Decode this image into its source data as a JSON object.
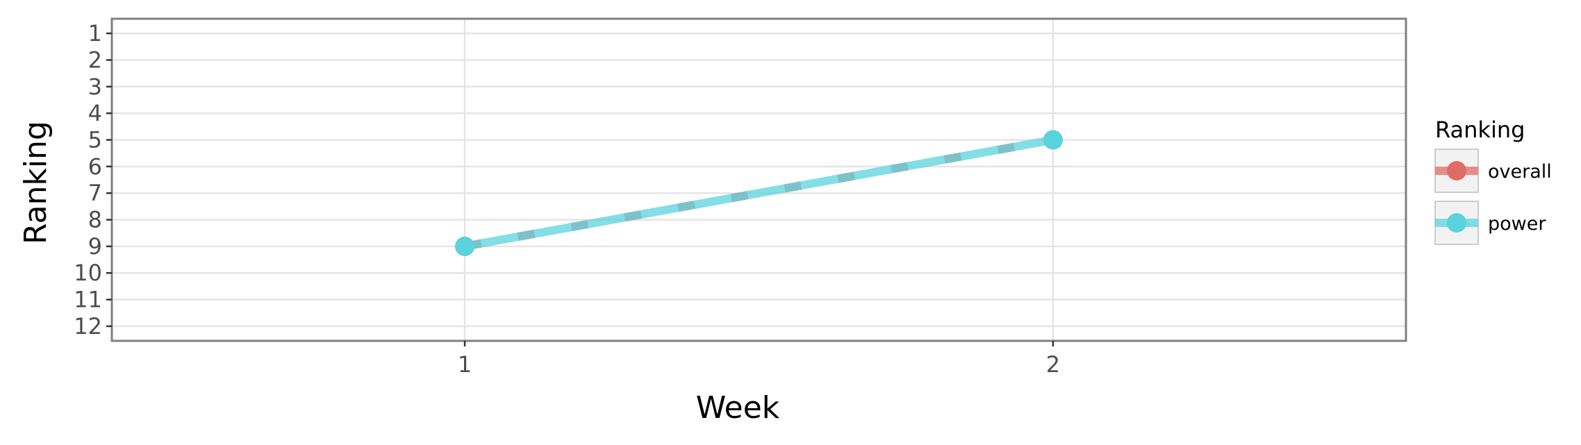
{
  "chart_data": {
    "type": "line",
    "title": "",
    "xlabel": "Week",
    "ylabel": "Ranking",
    "x": [
      1,
      2
    ],
    "x_tick_labels": [
      "1",
      "2"
    ],
    "xlim": [
      0.4,
      2.6
    ],
    "y_tick_labels": [
      "1",
      "2",
      "3",
      "4",
      "5",
      "6",
      "7",
      "8",
      "9",
      "10",
      "11",
      "12"
    ],
    "ylim": [
      0.45,
      12.55
    ],
    "y_reversed": true,
    "grid": true,
    "legend": {
      "title": "Ranking",
      "placement": "right",
      "entries": [
        "overall",
        "power"
      ]
    },
    "series": [
      {
        "name": "overall",
        "x": [
          1,
          2
        ],
        "y": [
          9,
          5
        ],
        "color": "#E06C65",
        "line_style": "dashed"
      },
      {
        "name": "power",
        "x": [
          1,
          2
        ],
        "y": [
          9,
          5
        ],
        "color": "#59D3DE",
        "line_style": "solid"
      }
    ]
  }
}
